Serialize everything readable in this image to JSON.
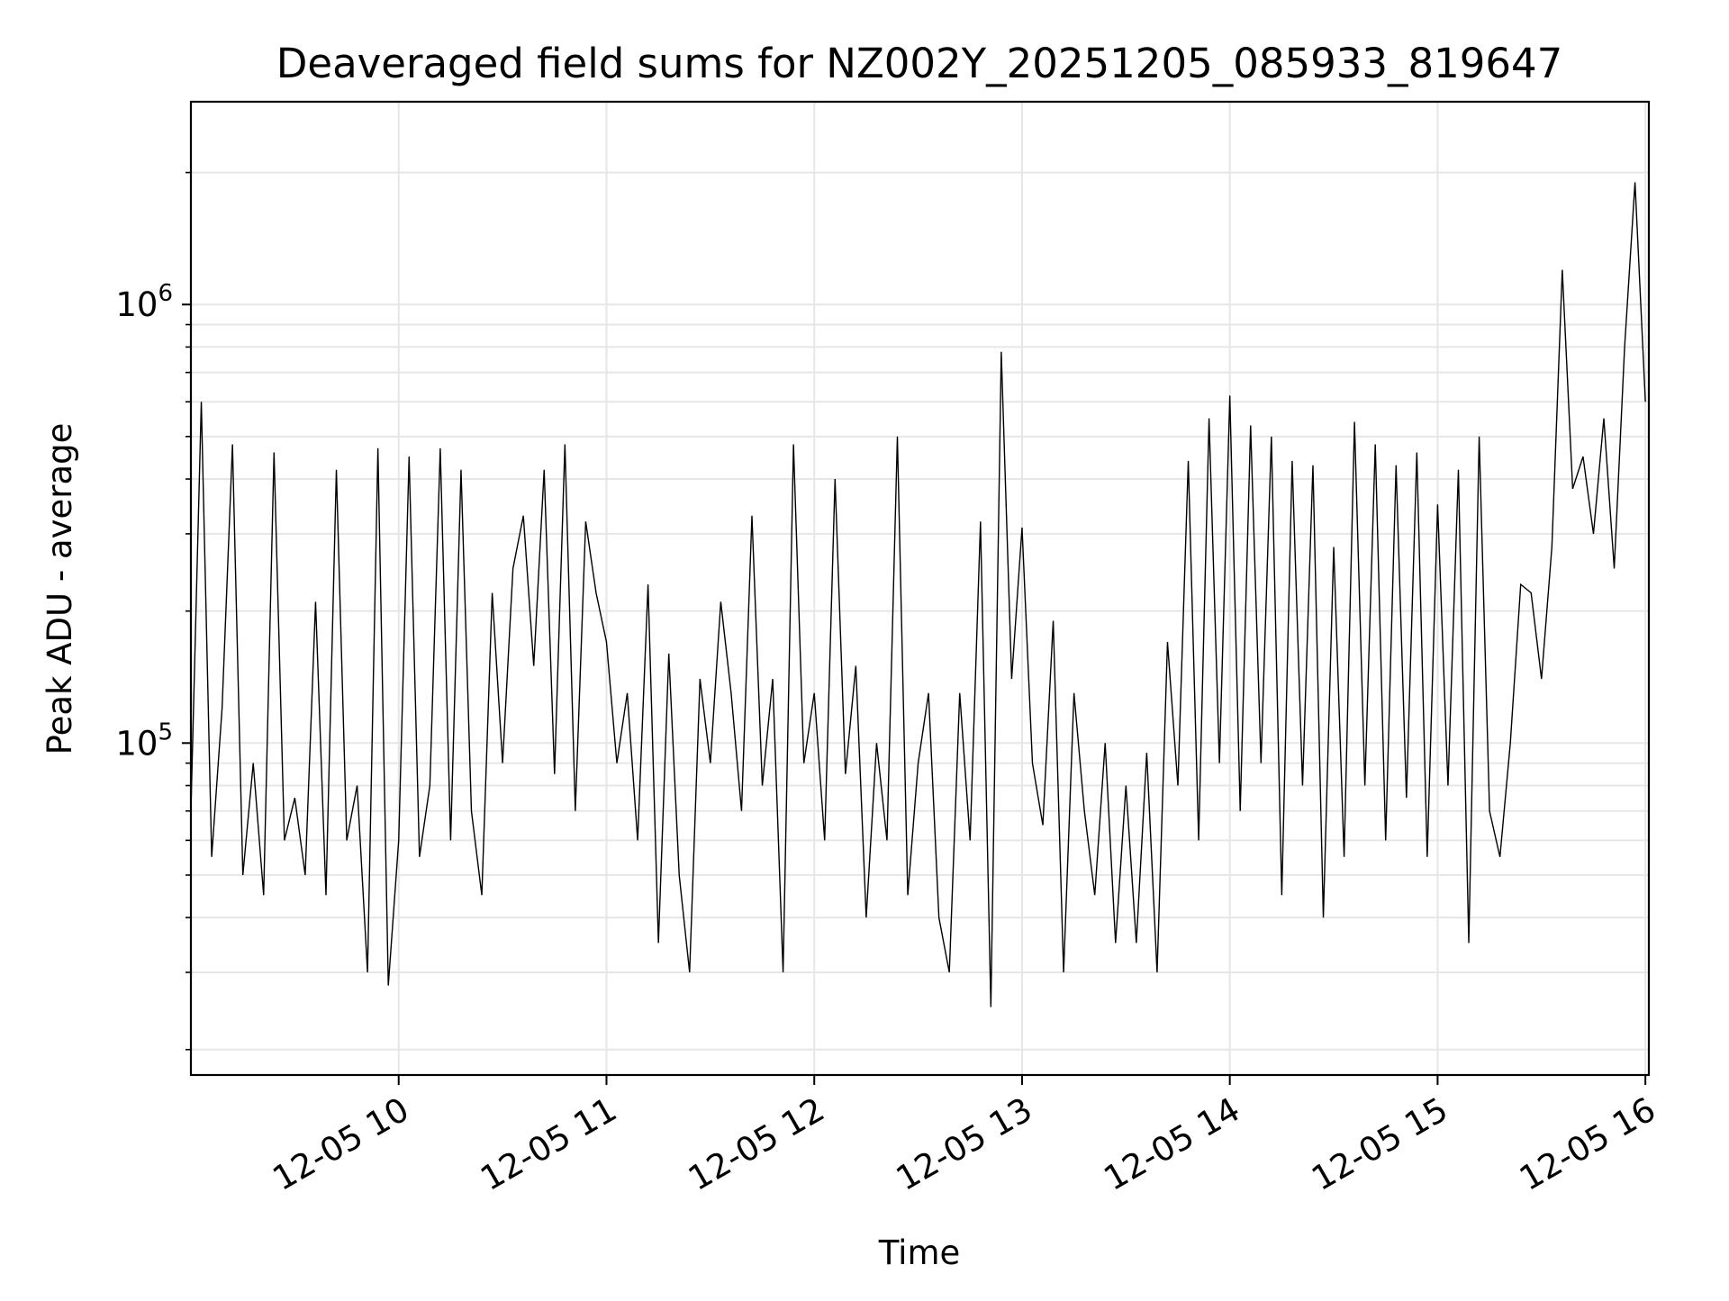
{
  "chart_data": {
    "type": "line",
    "title": "Deaveraged field sums for NZ002Y_20251205_085933_819647",
    "xlabel": "Time",
    "ylabel": "Peak ADU - average",
    "x_ticks": [
      "12-05 10",
      "12-05 11",
      "12-05 12",
      "12-05 13",
      "12-05 14",
      "12-05 15",
      "12-05 16"
    ],
    "y_ticks": [
      {
        "base": "10",
        "exp": "5",
        "value": 100000
      },
      {
        "base": "10",
        "exp": "6",
        "value": 1000000
      }
    ],
    "x_range": [
      "12-05 09:00",
      "12-05 16:01"
    ],
    "ylim": [
      17500,
      2900000
    ],
    "yscale": "log",
    "grid": true,
    "line_color": "#000000",
    "grid_color": "#e6e6e6",
    "series": [
      {
        "values_description_omitted": false,
        "x": [
          "12-05 09:00",
          "12-05 09:03",
          "12-05 09:06",
          "12-05 09:09",
          "12-05 09:12",
          "12-05 09:15",
          "12-05 09:18",
          "12-05 09:21",
          "12-05 09:24",
          "12-05 09:27",
          "12-05 09:30",
          "12-05 09:33",
          "12-05 09:36",
          "12-05 09:39",
          "12-05 09:42",
          "12-05 09:45",
          "12-05 09:48",
          "12-05 09:51",
          "12-05 09:54",
          "12-05 09:57",
          "12-05 10:00",
          "12-05 10:03",
          "12-05 10:06",
          "12-05 10:09",
          "12-05 10:12",
          "12-05 10:15",
          "12-05 10:18",
          "12-05 10:21",
          "12-05 10:24",
          "12-05 10:27",
          "12-05 10:30",
          "12-05 10:33",
          "12-05 10:36",
          "12-05 10:39",
          "12-05 10:42",
          "12-05 10:45",
          "12-05 10:48",
          "12-05 10:51",
          "12-05 10:54",
          "12-05 10:57",
          "12-05 11:00",
          "12-05 11:03",
          "12-05 11:06",
          "12-05 11:09",
          "12-05 11:12",
          "12-05 11:15",
          "12-05 11:18",
          "12-05 11:21",
          "12-05 11:24",
          "12-05 11:27",
          "12-05 11:30",
          "12-05 11:33",
          "12-05 11:36",
          "12-05 11:39",
          "12-05 11:42",
          "12-05 11:45",
          "12-05 11:48",
          "12-05 11:51",
          "12-05 11:54",
          "12-05 11:57",
          "12-05 12:00",
          "12-05 12:03",
          "12-05 12:06",
          "12-05 12:09",
          "12-05 12:12",
          "12-05 12:15",
          "12-05 12:18",
          "12-05 12:21",
          "12-05 12:24",
          "12-05 12:27",
          "12-05 12:30",
          "12-05 12:33",
          "12-05 12:36",
          "12-05 12:39",
          "12-05 12:42",
          "12-05 12:45",
          "12-05 12:48",
          "12-05 12:51",
          "12-05 12:54",
          "12-05 12:57",
          "12-05 13:00",
          "12-05 13:03",
          "12-05 13:06",
          "12-05 13:09",
          "12-05 13:12",
          "12-05 13:15",
          "12-05 13:18",
          "12-05 13:21",
          "12-05 13:24",
          "12-05 13:27",
          "12-05 13:30",
          "12-05 13:33",
          "12-05 13:36",
          "12-05 13:39",
          "12-05 13:42",
          "12-05 13:45",
          "12-05 13:48",
          "12-05 13:51",
          "12-05 13:54",
          "12-05 13:57",
          "12-05 14:00",
          "12-05 14:03",
          "12-05 14:06",
          "12-05 14:09",
          "12-05 14:12",
          "12-05 14:15",
          "12-05 14:18",
          "12-05 14:21",
          "12-05 14:24",
          "12-05 14:27",
          "12-05 14:30",
          "12-05 14:33",
          "12-05 14:36",
          "12-05 14:39",
          "12-05 14:42",
          "12-05 14:45",
          "12-05 14:48",
          "12-05 14:51",
          "12-05 14:54",
          "12-05 14:57",
          "12-05 15:00",
          "12-05 15:03",
          "12-05 15:06",
          "12-05 15:09",
          "12-05 15:12",
          "12-05 15:15",
          "12-05 15:18",
          "12-05 15:21",
          "12-05 15:24",
          "12-05 15:27",
          "12-05 15:30",
          "12-05 15:33",
          "12-05 15:36",
          "12-05 15:39",
          "12-05 15:42",
          "12-05 15:45",
          "12-05 15:48",
          "12-05 15:51",
          "12-05 15:54",
          "12-05 15:57",
          "12-05 16:00"
        ],
        "values": [
          70000,
          600000,
          55000,
          120000,
          480000,
          50000,
          90000,
          45000,
          460000,
          60000,
          75000,
          50000,
          210000,
          45000,
          420000,
          60000,
          80000,
          30000,
          470000,
          28000,
          60000,
          450000,
          55000,
          80000,
          470000,
          60000,
          420000,
          70000,
          45000,
          220000,
          90000,
          250000,
          330000,
          150000,
          420000,
          85000,
          480000,
          70000,
          320000,
          220000,
          170000,
          90000,
          130000,
          60000,
          230000,
          35000,
          160000,
          50000,
          30000,
          140000,
          90000,
          210000,
          130000,
          70000,
          330000,
          80000,
          140000,
          30000,
          480000,
          90000,
          130000,
          60000,
          400000,
          85000,
          150000,
          40000,
          100000,
          60000,
          500000,
          45000,
          90000,
          130000,
          40000,
          30000,
          130000,
          60000,
          320000,
          25000,
          780000,
          140000,
          310000,
          90000,
          65000,
          190000,
          30000,
          130000,
          70000,
          45000,
          100000,
          35000,
          80000,
          35000,
          95000,
          30000,
          170000,
          80000,
          440000,
          60000,
          550000,
          90000,
          620000,
          70000,
          530000,
          90000,
          500000,
          45000,
          440000,
          80000,
          430000,
          40000,
          280000,
          55000,
          540000,
          80000,
          480000,
          60000,
          430000,
          75000,
          460000,
          55000,
          350000,
          80000,
          420000,
          35000,
          500000,
          70000,
          55000,
          100000,
          230000,
          220000,
          140000,
          280000,
          1200000,
          380000,
          450000,
          300000,
          550000,
          250000,
          800000,
          1900000,
          600000
        ]
      }
    ]
  }
}
